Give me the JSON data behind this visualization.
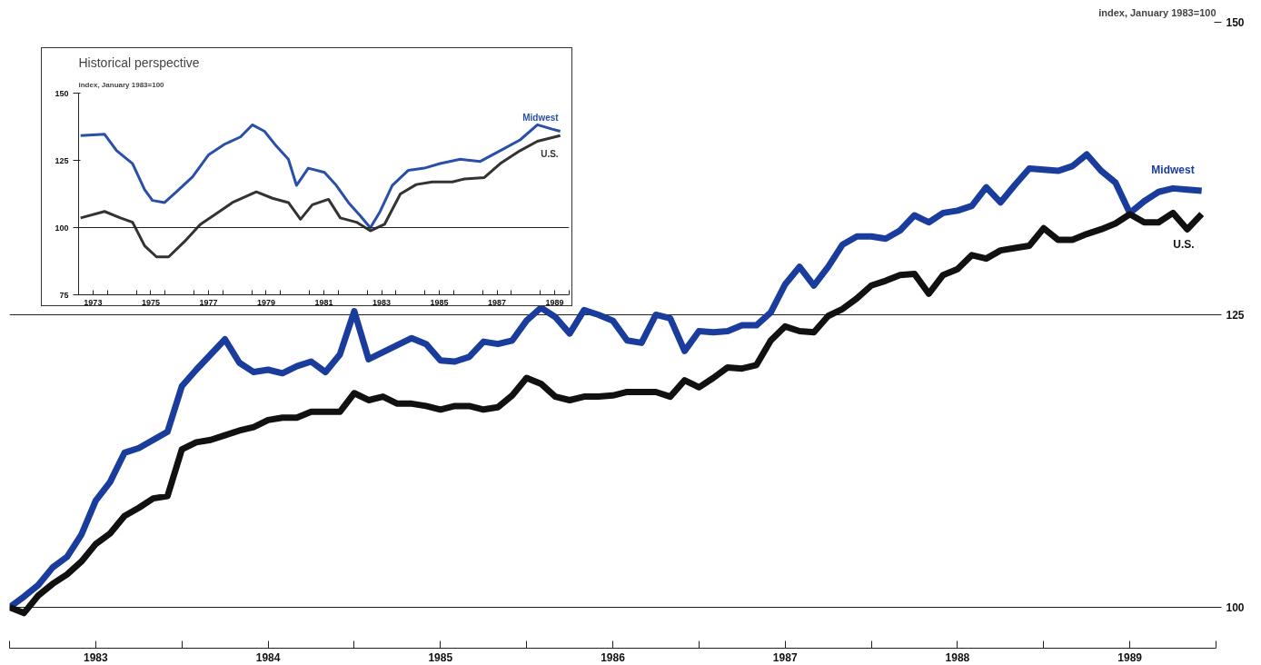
{
  "chart_data": [
    {
      "type": "line",
      "ylabel": "index, January 1983=100",
      "x": [
        "1983-01",
        "1983-02",
        "1983-03",
        "1983-04",
        "1983-05",
        "1983-06",
        "1983-07",
        "1983-08",
        "1983-09",
        "1983-10",
        "1983-11",
        "1983-12",
        "1984-01",
        "1984-02",
        "1984-03",
        "1984-04",
        "1984-05",
        "1984-06",
        "1984-07",
        "1984-08",
        "1984-09",
        "1984-10",
        "1984-11",
        "1984-12",
        "1985-01",
        "1985-02",
        "1985-03",
        "1985-04",
        "1985-05",
        "1985-06",
        "1985-07",
        "1985-08",
        "1985-09",
        "1985-10",
        "1985-11",
        "1985-12",
        "1986-01",
        "1986-02",
        "1986-03",
        "1986-04",
        "1986-05",
        "1986-06",
        "1986-07",
        "1986-08",
        "1986-09",
        "1986-10",
        "1986-11",
        "1986-12",
        "1987-01",
        "1987-02",
        "1987-03",
        "1987-04",
        "1987-05",
        "1987-06",
        "1987-07",
        "1987-08",
        "1987-09",
        "1987-10",
        "1987-11",
        "1987-12",
        "1988-01",
        "1988-02",
        "1988-03",
        "1988-04",
        "1988-05",
        "1988-06",
        "1988-07",
        "1988-08",
        "1988-09",
        "1988-10",
        "1988-11",
        "1988-12",
        "1989-01",
        "1989-02",
        "1989-03",
        "1989-04",
        "1989-05",
        "1989-06",
        "1989-07",
        "1989-08",
        "1989-09",
        "1989-10",
        "1989-11",
        "1989-12"
      ],
      "series": [
        {
          "name": "Midwest",
          "color": "#1a3c9c",
          "values": [
            100,
            100.9,
            101.9,
            103.4,
            104.3,
            106.2,
            109.1,
            110.7,
            113.2,
            113.6,
            114.3,
            115.0,
            118.9,
            120.3,
            121.6,
            122.9,
            120.9,
            120.1,
            120.3,
            120.0,
            120.6,
            121.0,
            120.1,
            121.6,
            125.3,
            121.2,
            121.8,
            122.4,
            123.0,
            122.5,
            121.1,
            121.0,
            121.4,
            122.7,
            122.5,
            122.8,
            124.5,
            125.6,
            124.8,
            123.4,
            125.4,
            125.0,
            124.5,
            122.8,
            122.6,
            125.0,
            124.7,
            121.9,
            123.6,
            123.5,
            123.6,
            124.1,
            124.1,
            125.2,
            127.6,
            129.1,
            127.5,
            129.1,
            131.0,
            131.7,
            131.7,
            131.5,
            132.2,
            133.5,
            132.9,
            133.7,
            133.9,
            134.3,
            135.9,
            134.6,
            136.1,
            137.5,
            137.4,
            137.3,
            137.7,
            138.7,
            137.3,
            136.3,
            133.7,
            134.7,
            135.5,
            135.8,
            135.7,
            135.6
          ]
        },
        {
          "name": "U.S.",
          "color": "#111111",
          "values": [
            100,
            99.5,
            101.0,
            102.0,
            102.8,
            103.9,
            105.4,
            106.3,
            107.8,
            108.5,
            109.3,
            109.5,
            113.5,
            114.1,
            114.3,
            114.7,
            115.1,
            115.4,
            116.0,
            116.2,
            116.2,
            116.7,
            116.7,
            116.7,
            118.3,
            117.7,
            118.0,
            117.4,
            117.4,
            117.2,
            116.9,
            117.2,
            117.2,
            116.9,
            117.1,
            118.1,
            119.6,
            119.1,
            118.0,
            117.7,
            118.0,
            118.0,
            118.1,
            118.4,
            118.4,
            118.4,
            118.0,
            119.4,
            118.8,
            119.6,
            120.5,
            120.4,
            120.7,
            122.8,
            124.0,
            123.6,
            123.5,
            124.9,
            125.5,
            126.4,
            127.5,
            127.9,
            128.4,
            128.5,
            126.8,
            128.4,
            128.9,
            130.1,
            129.8,
            130.5,
            130.7,
            130.9,
            132.4,
            131.4,
            131.4,
            131.9,
            132.3,
            132.8,
            133.6,
            132.9,
            132.9,
            133.7,
            132.3,
            133.6
          ]
        }
      ],
      "xlim": [
        "1983-01",
        "1990-01"
      ],
      "xticks": [
        {
          "value": "1983-01",
          "label": null
        },
        {
          "value": "1983-07",
          "label": "1983"
        },
        {
          "value": "1984-01",
          "label": null
        },
        {
          "value": "1984-07",
          "label": "1984"
        },
        {
          "value": "1985-01",
          "label": null
        },
        {
          "value": "1985-07",
          "label": "1985"
        },
        {
          "value": "1986-01",
          "label": null
        },
        {
          "value": "1986-07",
          "label": "1986"
        },
        {
          "value": "1987-01",
          "label": null
        },
        {
          "value": "1987-07",
          "label": "1987"
        },
        {
          "value": "1988-01",
          "label": null
        },
        {
          "value": "1988-07",
          "label": "1988"
        },
        {
          "value": "1989-01",
          "label": null
        },
        {
          "value": "1989-07",
          "label": "1989"
        },
        {
          "value": "1990-01",
          "label": null
        }
      ],
      "ylim": [
        96.5,
        150
      ],
      "yticks": [
        100,
        125,
        150
      ],
      "grid": "y"
    },
    {
      "type": "line",
      "title": "Historical perspective",
      "ylabel": "index, January 1983=100",
      "series": [
        {
          "name": "Midwest",
          "color": "#2a4fa8",
          "x": [
            1973.07,
            1973.9,
            1974.32,
            1974.87,
            1975.29,
            1975.56,
            1975.98,
            1976.39,
            1976.95,
            1977.5,
            1978.06,
            1978.61,
            1979.02,
            1979.44,
            1979.86,
            1980.27,
            1980.55,
            1980.96,
            1981.52,
            1981.93,
            1982.35,
            1982.76,
            1983.11,
            1983.45,
            1983.87,
            1984.43,
            1984.98,
            1985.53,
            1986.23,
            1986.92,
            1987.61,
            1988.3,
            1988.9,
            1989.41,
            1989.69
          ],
          "values": [
            134.2,
            134.7,
            128.6,
            123.8,
            114.1,
            110.1,
            109.3,
            113.3,
            118.9,
            127.0,
            131.0,
            133.7,
            138.2,
            135.8,
            130.2,
            125.4,
            115.7,
            122.1,
            120.5,
            115.7,
            109.3,
            104.4,
            99.9,
            106.0,
            115.7,
            121.3,
            122.1,
            123.8,
            125.4,
            124.6,
            128.6,
            132.6,
            138.2,
            136.6,
            135.8
          ]
        },
        {
          "name": "U.S.",
          "color": "#333333",
          "x": [
            1973.07,
            1973.9,
            1974.45,
            1974.87,
            1975.29,
            1975.7,
            1976.12,
            1976.67,
            1977.22,
            1977.78,
            1978.33,
            1979.16,
            1979.72,
            1980.27,
            1980.69,
            1981.1,
            1981.66,
            1982.07,
            1982.63,
            1983.11,
            1983.6,
            1984.15,
            1984.7,
            1985.26,
            1985.95,
            1986.37,
            1987.06,
            1987.61,
            1988.3,
            1988.9,
            1989.69
          ],
          "values": [
            103.6,
            106.0,
            103.6,
            102.0,
            93.2,
            89.1,
            89.1,
            94.8,
            101.2,
            105.2,
            109.3,
            113.3,
            110.9,
            109.3,
            103.1,
            108.5,
            110.5,
            103.6,
            102.0,
            98.8,
            101.2,
            112.5,
            116.0,
            117.0,
            117.0,
            118.1,
            118.6,
            123.8,
            128.6,
            132.1,
            134.2
          ]
        }
      ],
      "xlim": [
        1973,
        1990
      ],
      "xticks": [
        {
          "value": 1973,
          "label": null
        },
        {
          "value": 1973.5,
          "label": "1973"
        },
        {
          "value": 1974,
          "label": null
        },
        {
          "value": 1975,
          "label": null
        },
        {
          "value": 1975.5,
          "label": "1975"
        },
        {
          "value": 1976,
          "label": null
        },
        {
          "value": 1977,
          "label": null
        },
        {
          "value": 1977.5,
          "label": "1977"
        },
        {
          "value": 1978,
          "label": null
        },
        {
          "value": 1979,
          "label": null
        },
        {
          "value": 1979.5,
          "label": "1979"
        },
        {
          "value": 1980,
          "label": null
        },
        {
          "value": 1981,
          "label": null
        },
        {
          "value": 1981.5,
          "label": "1981"
        },
        {
          "value": 1982,
          "label": null
        },
        {
          "value": 1983,
          "label": null
        },
        {
          "value": 1983.5,
          "label": "1983"
        },
        {
          "value": 1984,
          "label": null
        },
        {
          "value": 1985,
          "label": null
        },
        {
          "value": 1985.5,
          "label": "1985"
        },
        {
          "value": 1986,
          "label": null
        },
        {
          "value": 1987,
          "label": null
        },
        {
          "value": 1987.5,
          "label": "1987"
        },
        {
          "value": 1988,
          "label": null
        },
        {
          "value": 1989,
          "label": null
        },
        {
          "value": 1989.5,
          "label": "1989"
        },
        {
          "value": 1990,
          "label": null
        }
      ],
      "ylim": [
        75,
        150
      ],
      "yticks": [
        75,
        100,
        125,
        150
      ],
      "grid": false,
      "ref_lines": [
        {
          "axis": "y",
          "value": 100
        }
      ]
    }
  ]
}
